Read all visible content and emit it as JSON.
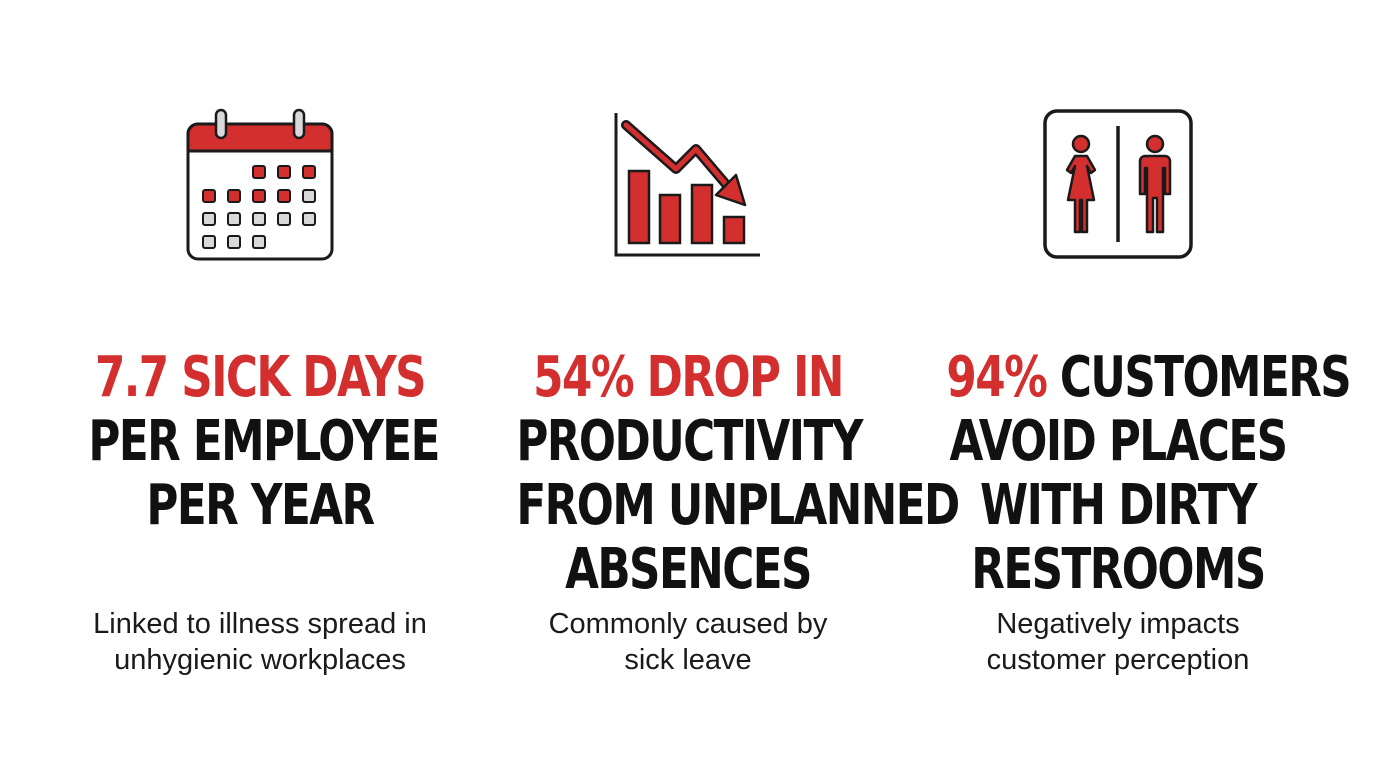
{
  "colors": {
    "accent": "#d32f2f",
    "text": "#111111",
    "icon_stroke": "#1a1a1a",
    "icon_grey": "#d9d9d9",
    "background": "#ffffff"
  },
  "stats": [
    {
      "icon": "calendar-icon",
      "headline": {
        "accent": "7.7 SICK DAYS",
        "rest_lines": [
          "PER EMPLOYEE",
          "PER YEAR"
        ]
      },
      "caption_lines": [
        "Linked to illness spread in",
        "unhygienic workplaces"
      ]
    },
    {
      "icon": "declining-chart-icon",
      "headline": {
        "accent": "54% DROP IN",
        "rest_lines": [
          "PRODUCTIVITY",
          "FROM UNPLANNED",
          "ABSENCES"
        ]
      },
      "caption_lines": [
        "Commonly caused by",
        "sick leave"
      ]
    },
    {
      "icon": "restroom-sign-icon",
      "headline": {
        "accent": "94%",
        "first_line_rest": " CUSTOMERS",
        "rest_lines": [
          "AVOID PLACES",
          "WITH DIRTY",
          "RESTROOMS"
        ]
      },
      "caption_lines": [
        "Negatively impacts",
        "customer perception"
      ]
    }
  ]
}
